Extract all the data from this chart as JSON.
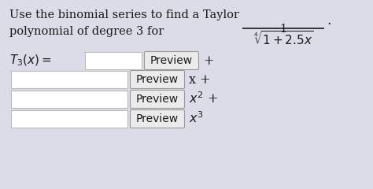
{
  "background_color": "#dcdce8",
  "text_color": "#1a1a1a",
  "title_line1": "Use the binomial series to find a Taylor",
  "title_line2": "polynomial of degree 3 for",
  "input_box_color": "#ffffff",
  "preview_box_color": "#ebebeb",
  "preview_box_border": "#999999",
  "input_box_border": "#bbbbbb",
  "font_size_main": 10.5,
  "font_size_math": 11,
  "frac_num": "1",
  "frac_den": "$\\sqrt[4]{1 + 2.5x}$",
  "period": ".",
  "t3_label": "$T_3(x) =$",
  "row0_suffix": "+",
  "row1_suffix": "x +",
  "row2_suffix": "$x^2$ +",
  "row3_suffix": "$x^3$",
  "preview_text": "Preview"
}
